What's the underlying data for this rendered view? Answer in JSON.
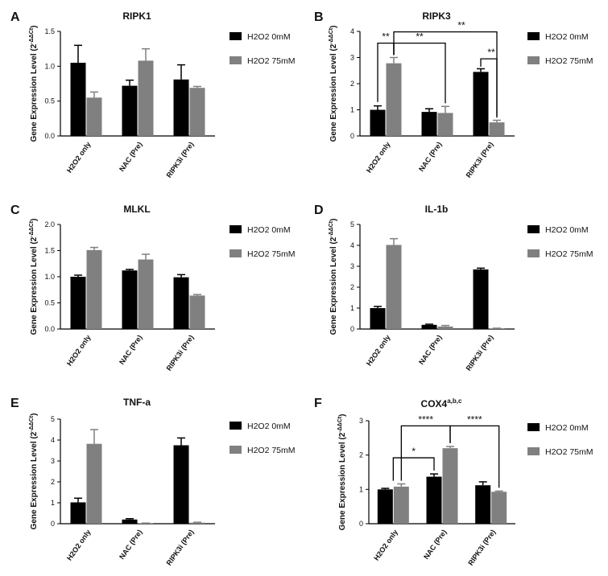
{
  "figure": {
    "legend": {
      "series": [
        "H2O2 0mM",
        "H2O2 75mM"
      ],
      "colors": [
        "#000000",
        "#808080"
      ]
    }
  },
  "chart_data": [
    {
      "panel": "A",
      "type": "bar",
      "title": "RIPK1",
      "ylabel": "Gene Expression Level (2^-ΔΔCt)",
      "categories": [
        "H2O2 only",
        "NAC (Pre)",
        "RIPK3i (Pre)"
      ],
      "ylim": [
        0,
        1.5
      ],
      "yticks": [
        "0.0",
        "0.5",
        "1.0",
        "1.5"
      ],
      "series": [
        {
          "name": "H2O2 0mM",
          "values": [
            1.05,
            0.72,
            0.81
          ],
          "errors": [
            0.25,
            0.08,
            0.21
          ]
        },
        {
          "name": "H2O2 75mM",
          "values": [
            0.55,
            1.08,
            0.69
          ],
          "errors": [
            0.08,
            0.17,
            0.02
          ]
        }
      ],
      "annotations": []
    },
    {
      "panel": "B",
      "type": "bar",
      "title": "RIPK3",
      "ylabel": "Gene Expression Level (2^-ΔΔCt)",
      "categories": [
        "H2O2 only",
        "NAC (Pre)",
        "RIPK3i (Pre)"
      ],
      "ylim": [
        0,
        4
      ],
      "yticks": [
        "0",
        "1",
        "2",
        "3",
        "4"
      ],
      "series": [
        {
          "name": "H2O2 0mM",
          "values": [
            1.0,
            0.92,
            2.45
          ],
          "errors": [
            0.15,
            0.12,
            0.12
          ]
        },
        {
          "name": "H2O2 75mM",
          "values": [
            2.78,
            0.88,
            0.52
          ],
          "errors": [
            0.22,
            0.25,
            0.08
          ]
        }
      ],
      "annotations": [
        {
          "label": "**",
          "from": "H2O2 only / H2O2 0mM",
          "to": "H2O2 only / H2O2 75mM"
        },
        {
          "label": "**",
          "from": "H2O2 only / H2O2 75mM",
          "to": "NAC (Pre) / H2O2 75mM"
        },
        {
          "label": "**",
          "from": "H2O2 only / H2O2 75mM",
          "to": "RIPK3i (Pre) / H2O2 75mM"
        },
        {
          "label": "**",
          "from": "RIPK3i (Pre) / H2O2 0mM",
          "to": "RIPK3i (Pre) / H2O2 75mM"
        }
      ]
    },
    {
      "panel": "C",
      "type": "bar",
      "title": "MLKL",
      "ylabel": "Gene Expression Level (2^-ΔΔCt)",
      "categories": [
        "H2O2 only",
        "NAC (Pre)",
        "RIPK3i (Pre)"
      ],
      "ylim": [
        0,
        2.0
      ],
      "yticks": [
        "0.0",
        "0.5",
        "1.0",
        "1.5",
        "2.0"
      ],
      "series": [
        {
          "name": "H2O2 0mM",
          "values": [
            1.0,
            1.12,
            0.99
          ],
          "errors": [
            0.03,
            0.02,
            0.05
          ]
        },
        {
          "name": "H2O2 75mM",
          "values": [
            1.51,
            1.33,
            0.64
          ],
          "errors": [
            0.05,
            0.1,
            0.02
          ]
        }
      ],
      "annotations": []
    },
    {
      "panel": "D",
      "type": "bar",
      "title": "IL-1b",
      "ylabel": "Gene Expression Level (2^-ΔΔCt)",
      "categories": [
        "H2O2 only",
        "NAC (Pre)",
        "RIPK3i (Pre)"
      ],
      "ylim": [
        0,
        5
      ],
      "yticks": [
        "0",
        "1",
        "2",
        "3",
        "4",
        "5"
      ],
      "series": [
        {
          "name": "H2O2 0mM",
          "values": [
            1.0,
            0.2,
            2.85
          ],
          "errors": [
            0.08,
            0.03,
            0.06
          ]
        },
        {
          "name": "H2O2 75mM",
          "values": [
            4.02,
            0.12,
            0.03
          ],
          "errors": [
            0.3,
            0.05,
            0.01
          ]
        }
      ],
      "annotations": []
    },
    {
      "panel": "E",
      "type": "bar",
      "title": "TNF-a",
      "ylabel": "Gene Expression Level (2^-ΔΔCt)",
      "categories": [
        "H2O2 only",
        "NAC (Pre)",
        "RIPK3i (Pre)"
      ],
      "ylim": [
        0,
        5
      ],
      "yticks": [
        "0",
        "1",
        "2",
        "3",
        "4",
        "5"
      ],
      "series": [
        {
          "name": "H2O2 0mM",
          "values": [
            1.02,
            0.2,
            3.75
          ],
          "errors": [
            0.2,
            0.04,
            0.35
          ]
        },
        {
          "name": "H2O2 75mM",
          "values": [
            3.82,
            0.02,
            0.05
          ],
          "errors": [
            0.68,
            0.01,
            0.02
          ]
        }
      ],
      "annotations": []
    },
    {
      "panel": "F",
      "type": "bar",
      "title": "COX4",
      "title_superscript": "a,b,c",
      "ylabel": "Gene Expression Level (2^-ΔΔCt)",
      "categories": [
        "H2O2 only",
        "NAC (Pre)",
        "RIPK3i (Pre)"
      ],
      "ylim": [
        0,
        3
      ],
      "yticks": [
        "0",
        "1",
        "2",
        "3"
      ],
      "series": [
        {
          "name": "H2O2 0mM",
          "values": [
            1.0,
            1.37,
            1.12
          ],
          "errors": [
            0.03,
            0.08,
            0.1
          ]
        },
        {
          "name": "H2O2 75mM",
          "values": [
            1.08,
            2.2,
            0.93
          ],
          "errors": [
            0.08,
            0.05,
            0.02
          ]
        }
      ],
      "annotations": [
        {
          "label": "*",
          "from": "H2O2 only",
          "to": "NAC (Pre) / H2O2 0mM"
        },
        {
          "label": "****",
          "from": "H2O2 only / H2O2 75mM",
          "to": "NAC (Pre) / H2O2 75mM"
        },
        {
          "label": "****",
          "from": "NAC (Pre) / H2O2 75mM",
          "to": "RIPK3i (Pre) / H2O2 75mM"
        }
      ]
    }
  ]
}
